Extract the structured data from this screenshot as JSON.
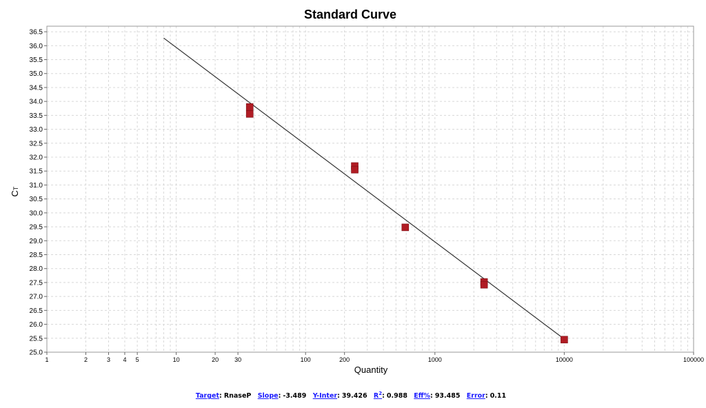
{
  "chart_data": {
    "type": "scatter",
    "title": "Standard Curve",
    "xlabel": "Quantity",
    "ylabel": "C",
    "ylabel_sub": "T",
    "x_scale": "log",
    "xlim": [
      1,
      100000
    ],
    "ylim": [
      25.0,
      36.7
    ],
    "x_tick_labels": [
      "1",
      "2",
      "3",
      "4",
      "5",
      "10",
      "20",
      "30",
      "100",
      "200",
      "1000",
      "10000",
      "100000"
    ],
    "x_tick_values": [
      1,
      2,
      3,
      4,
      5,
      10,
      20,
      30,
      100,
      200,
      1000,
      10000,
      100000
    ],
    "y_tick_labels": [
      "25.0",
      "25.5",
      "26.0",
      "26.5",
      "27.0",
      "27.5",
      "28.0",
      "28.5",
      "29.0",
      "29.5",
      "30.0",
      "30.5",
      "31.0",
      "31.5",
      "32.0",
      "32.5",
      "33.0",
      "33.5",
      "34.0",
      "34.5",
      "35.0",
      "35.5",
      "36.0",
      "36.5"
    ],
    "y_tick_values": [
      25.0,
      25.5,
      26.0,
      26.5,
      27.0,
      27.5,
      28.0,
      28.5,
      29.0,
      29.5,
      30.0,
      30.5,
      31.0,
      31.5,
      32.0,
      32.5,
      33.0,
      33.5,
      34.0,
      34.5,
      35.0,
      35.5,
      36.0,
      36.5
    ],
    "grid": true,
    "points": [
      {
        "x": 37,
        "y": 33.8
      },
      {
        "x": 37,
        "y": 33.55
      },
      {
        "x": 240,
        "y": 31.68
      },
      {
        "x": 240,
        "y": 31.55
      },
      {
        "x": 590,
        "y": 29.48
      },
      {
        "x": 2400,
        "y": 27.52
      },
      {
        "x": 2400,
        "y": 27.42
      },
      {
        "x": 10000,
        "y": 25.45
      }
    ],
    "fit_line": {
      "slope": -3.489,
      "intercept": 39.426,
      "x_start": 8,
      "x_end": 10000
    },
    "marker_color": "#b01c24",
    "line_color": "#333333",
    "grid_color": "#d8d8d8"
  },
  "footer": {
    "target_label": "Target",
    "target_value": "RnaseP",
    "slope_label": "Slope",
    "slope_value": "-3.489",
    "yinter_label": "Y-Inter",
    "yinter_value": "39.426",
    "r2_label": "R",
    "r2_sup": "2",
    "r2_value": "0.988",
    "eff_label": "Eff%",
    "eff_value": "93.485",
    "error_label": "Error",
    "error_value": "0.11"
  }
}
